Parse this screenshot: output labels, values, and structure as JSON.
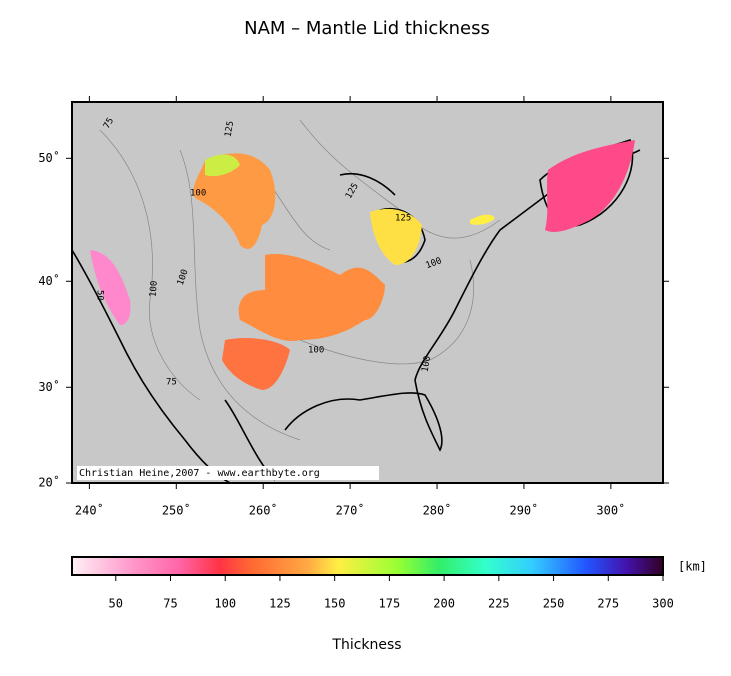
{
  "title": "NAM – Mantle Lid thickness",
  "map": {
    "xlim": [
      238,
      306
    ],
    "ylim": [
      20,
      54
    ],
    "xticks": [
      {
        "value": 240,
        "label": "240˚"
      },
      {
        "value": 250,
        "label": "250˚"
      },
      {
        "value": 260,
        "label": "260˚"
      },
      {
        "value": 270,
        "label": "270˚"
      },
      {
        "value": 280,
        "label": "280˚"
      },
      {
        "value": 290,
        "label": "290˚"
      },
      {
        "value": 300,
        "label": "300˚"
      }
    ],
    "yticks": [
      {
        "value": 20,
        "label": "20˚"
      },
      {
        "value": 30,
        "label": "30˚"
      },
      {
        "value": 40,
        "label": "40˚"
      },
      {
        "value": 50,
        "label": "50˚"
      }
    ],
    "contour_labels": [
      "125",
      "100",
      "100",
      "100",
      "50",
      "75",
      "100",
      "125",
      "100",
      "100",
      "125",
      "75"
    ],
    "credit": "Christian Heine,2007 - www.earthbyte.org"
  },
  "colorbar": {
    "lim": [
      30,
      300
    ],
    "ticks": [
      50,
      75,
      100,
      125,
      150,
      175,
      200,
      225,
      250,
      275,
      300
    ],
    "unit": "[km]",
    "label": "Thickness"
  }
}
